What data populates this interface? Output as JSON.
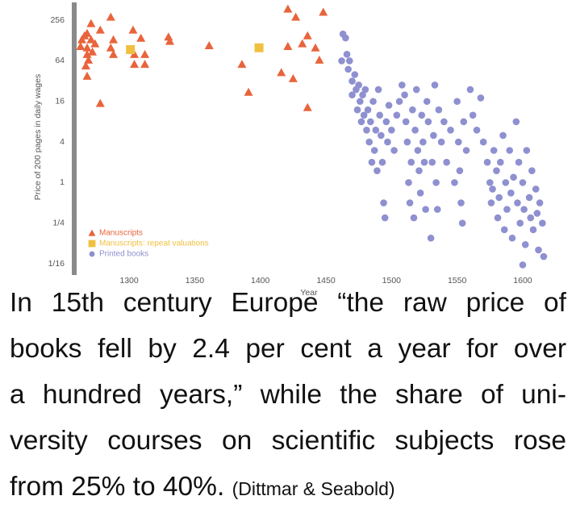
{
  "chart_data": {
    "type": "scatter",
    "y_label": "Price of 200 pages in daily wages",
    "x_label": "Year",
    "log_scale_y": 2,
    "xlim": [
      1260,
      1632
    ],
    "xticks": [
      1300,
      1350,
      1400,
      1450,
      1500,
      1550,
      1600
    ],
    "ylim": [
      0.0425,
      471
    ],
    "yticks": [
      {
        "value": 0.0625,
        "label": "1/16"
      },
      {
        "value": 0.25,
        "label": "1/4"
      },
      1,
      4,
      16,
      64,
      256
    ],
    "legend": "bottom-left",
    "series": [
      {
        "name": "Manuscripts",
        "color": "#e8643c",
        "marker": "triangle",
        "x": [
          1271,
          1278,
          1286,
          1303,
          1268,
          1264,
          1271,
          1263,
          1268,
          1274,
          1288,
          1309,
          1331,
          1330,
          1361,
          1268,
          1288,
          1304,
          1312,
          1304,
          1312,
          1269,
          1268,
          1278,
          1386,
          1391,
          1421,
          1427,
          1448,
          1436,
          1432,
          1421,
          1442,
          1445,
          1416,
          1425,
          1436,
          1266,
          1272,
          1286,
          1267
        ],
        "values": [
          229,
          184,
          286,
          184,
          164,
          132,
          132,
          105,
          100,
          115,
          132,
          139,
          125,
          145,
          108,
          80,
          80,
          80,
          80,
          57,
          57,
          66,
          38,
          15,
          57,
          22,
          377,
          286,
          338,
          151,
          115,
          105,
          100,
          66,
          43,
          35,
          13,
          151,
          87,
          100,
          54
        ]
      },
      {
        "name": "Manuscripts: repeat valuations",
        "color": "#f0c040",
        "marker": "square",
        "x": [
          1301,
          1399
        ],
        "values": [
          94,
          100
        ]
      },
      {
        "name": "Printed books",
        "color": "#8e90d0",
        "marker": "circle",
        "x": [
          1462,
          1463,
          1465,
          1466,
          1467,
          1468,
          1470,
          1470,
          1472,
          1473,
          1474,
          1475,
          1476,
          1477,
          1478,
          1479,
          1480,
          1481,
          1482,
          1483,
          1484,
          1485,
          1486,
          1487,
          1488,
          1489,
          1490,
          1491,
          1492,
          1493,
          1494,
          1495,
          1496,
          1497,
          1498,
          1500,
          1502,
          1504,
          1506,
          1508,
          1510,
          1511,
          1512,
          1513,
          1514,
          1515,
          1516,
          1517,
          1518,
          1519,
          1520,
          1521,
          1522,
          1523,
          1524,
          1525,
          1526,
          1527,
          1528,
          1530,
          1531,
          1532,
          1533,
          1534,
          1535,
          1536,
          1538,
          1540,
          1542,
          1545,
          1548,
          1550,
          1551,
          1552,
          1553,
          1554,
          1555,
          1557,
          1560,
          1562,
          1565,
          1568,
          1570,
          1573,
          1575,
          1576,
          1577,
          1578,
          1580,
          1581,
          1582,
          1583,
          1585,
          1586,
          1587,
          1588,
          1590,
          1591,
          1592,
          1593,
          1595,
          1596,
          1597,
          1598,
          1600,
          1601,
          1602,
          1603,
          1605,
          1606,
          1607,
          1608,
          1610,
          1611,
          1612,
          1613,
          1615,
          1616,
          1600
        ],
        "values": [
          64,
          160,
          140,
          80,
          48,
          64,
          32,
          20,
          40,
          24,
          12,
          28,
          16,
          8,
          20,
          10,
          24,
          6,
          12,
          4,
          8,
          2,
          16,
          3,
          6,
          1.5,
          24,
          10,
          5,
          2,
          0.5,
          0.3,
          8,
          4,
          14,
          6,
          3,
          10,
          16,
          28,
          20,
          8,
          4,
          1,
          0.5,
          2,
          12,
          0.3,
          6,
          24,
          3,
          1.5,
          0.7,
          10,
          4,
          2,
          0.4,
          16,
          8,
          0.15,
          2,
          5,
          28,
          1,
          0.4,
          12,
          4,
          8,
          2,
          6,
          1,
          16,
          4,
          1.5,
          0.5,
          0.25,
          8,
          3,
          24,
          10,
          6,
          18,
          4,
          2,
          1,
          0.5,
          0.8,
          3,
          1.5,
          0.3,
          0.6,
          2,
          5,
          0.2,
          1,
          0.4,
          3,
          0.7,
          0.15,
          1.2,
          8,
          0.5,
          2,
          0.25,
          1,
          0.4,
          0.12,
          3,
          0.6,
          0.3,
          1.5,
          0.2,
          0.8,
          0.35,
          0.1,
          0.5,
          0.25,
          0.08,
          0.06
        ]
      }
    ]
  },
  "caption": {
    "lines": [
      "In 15th century Europe “the raw price of",
      "books fell by 2.4 per cent a year for over",
      "a hundred years,” while the share of uni-",
      "versity courses on scientific subjects rose",
      "from 25% to 40%."
    ],
    "source": "(Dittmar & Seabold)"
  }
}
